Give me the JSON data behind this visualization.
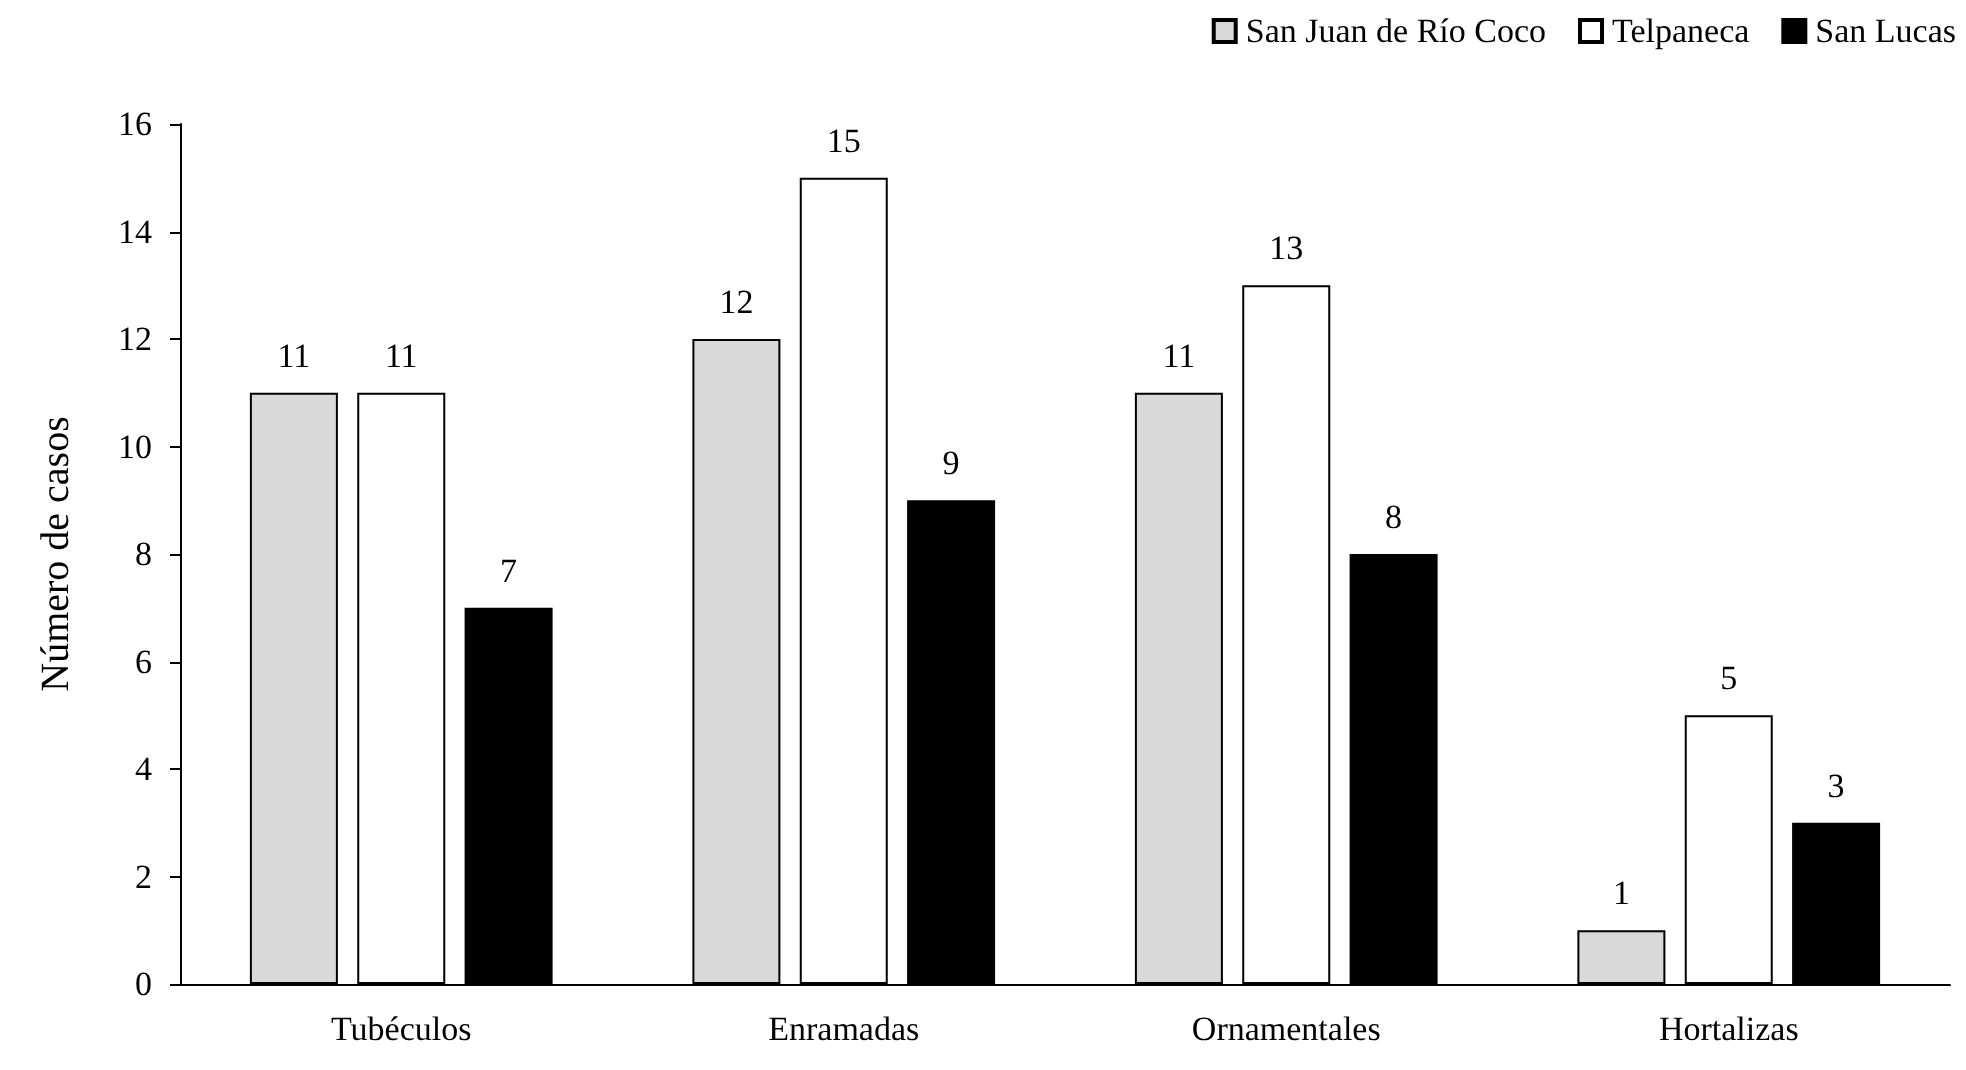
{
  "chart_data": {
    "type": "bar",
    "ylabel": "Número de casos",
    "categories": [
      "Tubéculos",
      "Enramadas",
      "Ornamentales",
      "Hortalizas"
    ],
    "series": [
      {
        "name": "San Juan de Río Coco",
        "color": "#d9d9d9",
        "values": [
          11,
          12,
          11,
          1
        ]
      },
      {
        "name": "Telpaneca",
        "color": "#ffffff",
        "values": [
          11,
          15,
          13,
          5
        ]
      },
      {
        "name": "San Lucas",
        "color": "#000000",
        "values": [
          7,
          9,
          8,
          3
        ]
      }
    ],
    "ylim": [
      0,
      16
    ],
    "yticks": [
      0,
      2,
      4,
      6,
      8,
      10,
      12,
      14,
      16
    ],
    "grid": false,
    "legend": "top right",
    "data_labels": true
  }
}
